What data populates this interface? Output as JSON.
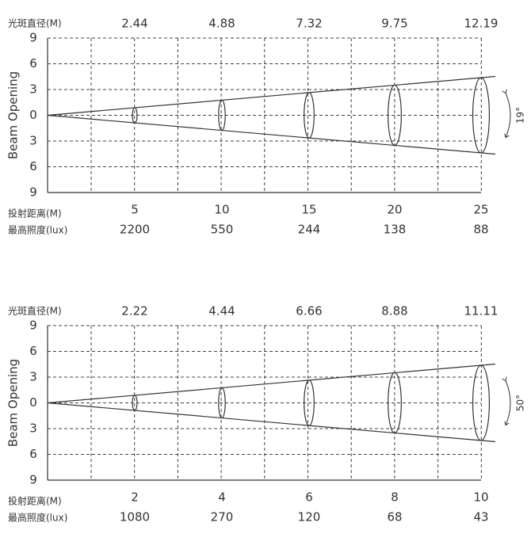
{
  "panels": [
    {
      "spot_label": "光斑直径(M)",
      "spot_diameters": [
        2.44,
        4.88,
        7.32,
        9.75,
        12.19
      ],
      "y_axis_label": "Beam Opening",
      "y_ticks": [
        9,
        6,
        3,
        0,
        3,
        6,
        9
      ],
      "angle": "19°",
      "distance_label": "投射距离(M)",
      "distances": [
        5,
        10,
        15,
        20,
        25
      ],
      "lux_label": "最高照度(lux)",
      "lux": [
        2200,
        550,
        244,
        138,
        88
      ]
    },
    {
      "spot_label": "光斑直径(M)",
      "spot_diameters": [
        2.22,
        4.44,
        6.66,
        8.88,
        11.11
      ],
      "y_axis_label": "Beam Opening",
      "y_ticks": [
        9,
        6,
        3,
        0,
        3,
        6,
        9
      ],
      "angle": "50°",
      "distance_label": "投射距离(M)",
      "distances": [
        2,
        4,
        6,
        8,
        10
      ],
      "lux_label": "最高照度(lux)",
      "lux": [
        1080,
        270,
        120,
        68,
        43
      ]
    }
  ]
}
